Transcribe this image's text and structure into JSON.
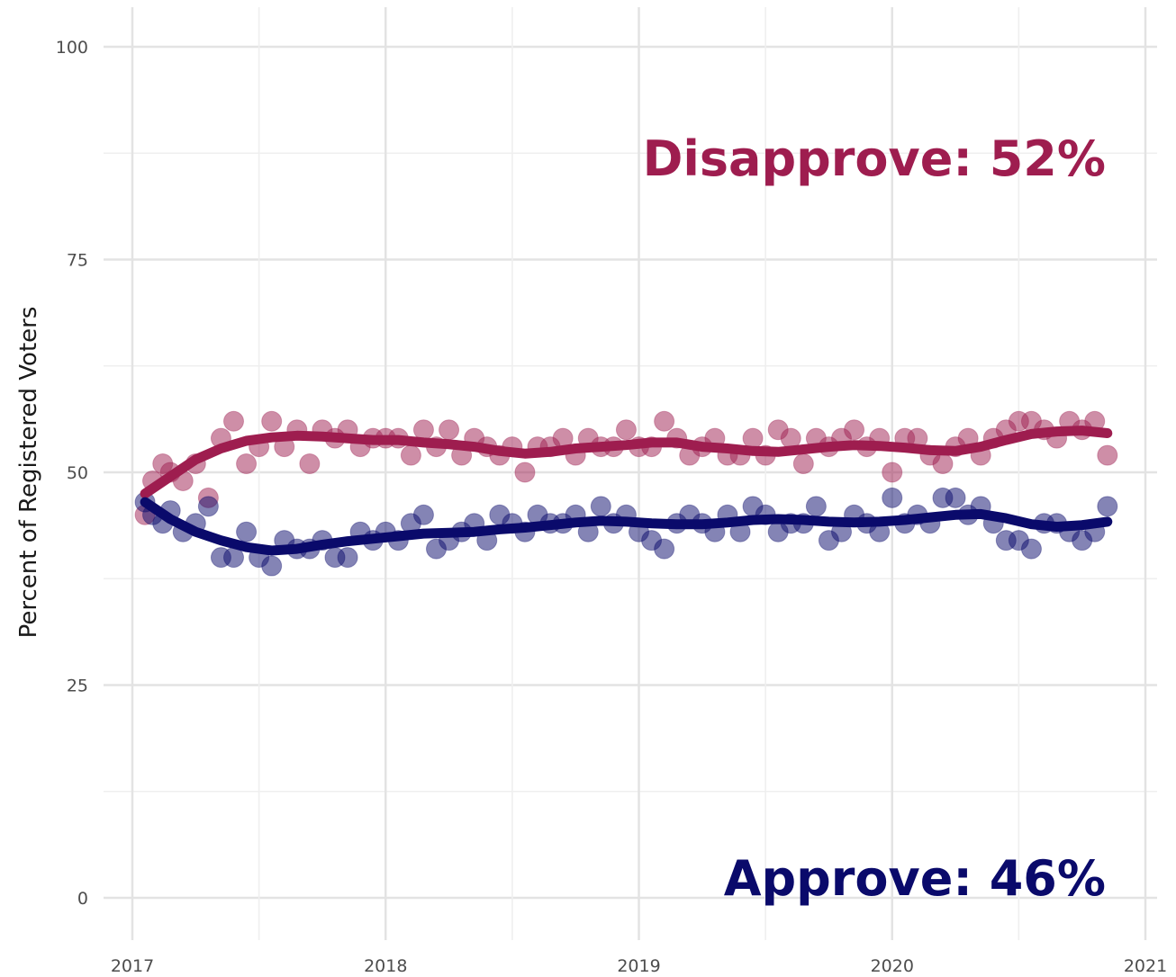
{
  "chart_data": {
    "type": "scatter",
    "title": "",
    "xlabel": "",
    "ylabel": "Percent of Registered Voters",
    "xlim": [
      2017,
      2021
    ],
    "ylim": [
      0,
      100
    ],
    "x_ticks": [
      "2017",
      "2018",
      "2019",
      "2020",
      "2021"
    ],
    "y_ticks": [
      "0",
      "25",
      "50",
      "75",
      "100"
    ],
    "grid": true,
    "legend": "none",
    "annotations": [
      {
        "text": "Disapprove: 52%",
        "series": "Disapprove",
        "color": "#9e1d4f",
        "y": 87
      },
      {
        "text": "Approve: 46%",
        "series": "Approve",
        "color": "#0a0a6b",
        "y": 2
      }
    ],
    "series": [
      {
        "name": "Disapprove",
        "color": "#9e1d4f",
        "points_x": [
          2017.05,
          2017.08,
          2017.12,
          2017.15,
          2017.2,
          2017.25,
          2017.3,
          2017.35,
          2017.4,
          2017.45,
          2017.5,
          2017.55,
          2017.6,
          2017.65,
          2017.7,
          2017.75,
          2017.8,
          2017.85,
          2017.9,
          2017.95,
          2018.0,
          2018.05,
          2018.1,
          2018.15,
          2018.2,
          2018.25,
          2018.3,
          2018.35,
          2018.4,
          2018.45,
          2018.5,
          2018.55,
          2018.6,
          2018.65,
          2018.7,
          2018.75,
          2018.8,
          2018.85,
          2018.9,
          2018.95,
          2019.0,
          2019.05,
          2019.1,
          2019.15,
          2019.2,
          2019.25,
          2019.3,
          2019.35,
          2019.4,
          2019.45,
          2019.5,
          2019.55,
          2019.6,
          2019.65,
          2019.7,
          2019.75,
          2019.8,
          2019.85,
          2019.9,
          2019.95,
          2020.0,
          2020.05,
          2020.1,
          2020.15,
          2020.2,
          2020.25,
          2020.3,
          2020.35,
          2020.4,
          2020.45,
          2020.5,
          2020.55,
          2020.6,
          2020.65,
          2020.7,
          2020.75,
          2020.8,
          2020.85
        ],
        "points_y": [
          45,
          49,
          51,
          50,
          49,
          51,
          47,
          54,
          56,
          51,
          53,
          56,
          53,
          55,
          51,
          55,
          54,
          55,
          53,
          54,
          54,
          54,
          52,
          55,
          53,
          55,
          52,
          54,
          53,
          52,
          53,
          50,
          53,
          53,
          54,
          52,
          54,
          53,
          53,
          55,
          53,
          53,
          56,
          54,
          52,
          53,
          54,
          52,
          52,
          54,
          52,
          55,
          54,
          51,
          54,
          53,
          54,
          55,
          53,
          54,
          50,
          54,
          54,
          52,
          51,
          53,
          54,
          52,
          54,
          55,
          56,
          56,
          55,
          54,
          56,
          55,
          56,
          52
        ],
        "trend_x": [
          2017.05,
          2017.15,
          2017.25,
          2017.35,
          2017.45,
          2017.55,
          2017.65,
          2017.75,
          2017.85,
          2017.95,
          2018.05,
          2018.15,
          2018.25,
          2018.35,
          2018.45,
          2018.55,
          2018.65,
          2018.75,
          2018.85,
          2018.95,
          2019.05,
          2019.15,
          2019.25,
          2019.35,
          2019.45,
          2019.55,
          2019.65,
          2019.75,
          2019.85,
          2019.95,
          2020.05,
          2020.15,
          2020.25,
          2020.35,
          2020.45,
          2020.55,
          2020.65,
          2020.75,
          2020.85
        ],
        "trend_y": [
          47.5,
          49.5,
          51.5,
          52.8,
          53.7,
          54.1,
          54.3,
          54.2,
          54.0,
          53.8,
          53.8,
          53.5,
          53.3,
          53.0,
          52.5,
          52.2,
          52.4,
          52.8,
          53.0,
          53.2,
          53.5,
          53.5,
          53.0,
          52.8,
          52.5,
          52.4,
          52.7,
          53.0,
          53.2,
          53.1,
          52.9,
          52.6,
          52.5,
          53.0,
          53.8,
          54.5,
          54.8,
          54.9,
          54.6
        ]
      },
      {
        "name": "Approve",
        "color": "#0a0a6b",
        "points_x": [
          2017.05,
          2017.08,
          2017.12,
          2017.15,
          2017.2,
          2017.25,
          2017.3,
          2017.35,
          2017.4,
          2017.45,
          2017.5,
          2017.55,
          2017.6,
          2017.65,
          2017.7,
          2017.75,
          2017.8,
          2017.85,
          2017.9,
          2017.95,
          2018.0,
          2018.05,
          2018.1,
          2018.15,
          2018.2,
          2018.25,
          2018.3,
          2018.35,
          2018.4,
          2018.45,
          2018.5,
          2018.55,
          2018.6,
          2018.65,
          2018.7,
          2018.75,
          2018.8,
          2018.85,
          2018.9,
          2018.95,
          2019.0,
          2019.05,
          2019.1,
          2019.15,
          2019.2,
          2019.25,
          2019.3,
          2019.35,
          2019.4,
          2019.45,
          2019.5,
          2019.55,
          2019.6,
          2019.65,
          2019.7,
          2019.75,
          2019.8,
          2019.85,
          2019.9,
          2019.95,
          2020.0,
          2020.05,
          2020.1,
          2020.15,
          2020.2,
          2020.25,
          2020.3,
          2020.35,
          2020.4,
          2020.45,
          2020.5,
          2020.55,
          2020.6,
          2020.65,
          2020.7,
          2020.75,
          2020.8,
          2020.85
        ],
        "points_y": [
          46.5,
          45,
          44,
          45.5,
          43,
          44,
          46,
          40,
          40,
          43,
          40,
          39,
          42,
          41,
          41,
          42,
          40,
          40,
          43,
          42,
          43,
          42,
          44,
          45,
          41,
          42,
          43,
          44,
          42,
          45,
          44,
          43,
          45,
          44,
          44,
          45,
          43,
          46,
          44,
          45,
          43,
          42,
          41,
          44,
          45,
          44,
          43,
          45,
          43,
          46,
          45,
          43,
          44,
          44,
          46,
          42,
          43,
          45,
          44,
          43,
          47,
          44,
          45,
          44,
          47,
          47,
          45,
          46,
          44,
          42,
          42,
          41,
          44,
          44,
          43,
          42,
          43,
          46
        ],
        "trend_x": [
          2017.05,
          2017.15,
          2017.25,
          2017.35,
          2017.45,
          2017.55,
          2017.65,
          2017.75,
          2017.85,
          2017.95,
          2018.05,
          2018.15,
          2018.25,
          2018.35,
          2018.45,
          2018.55,
          2018.65,
          2018.75,
          2018.85,
          2018.95,
          2019.05,
          2019.15,
          2019.25,
          2019.35,
          2019.45,
          2019.55,
          2019.65,
          2019.75,
          2019.85,
          2019.95,
          2020.05,
          2020.15,
          2020.25,
          2020.35,
          2020.45,
          2020.55,
          2020.65,
          2020.75,
          2020.85
        ],
        "trend_y": [
          46.5,
          44.5,
          43.0,
          42.0,
          41.2,
          40.8,
          41.0,
          41.5,
          41.9,
          42.2,
          42.5,
          42.8,
          42.9,
          43.0,
          43.3,
          43.5,
          43.8,
          44.1,
          44.3,
          44.2,
          44.0,
          43.9,
          43.9,
          44.1,
          44.4,
          44.5,
          44.4,
          44.2,
          44.1,
          44.2,
          44.4,
          44.7,
          45.0,
          45.1,
          44.6,
          43.9,
          43.6,
          43.8,
          44.2
        ]
      }
    ]
  }
}
